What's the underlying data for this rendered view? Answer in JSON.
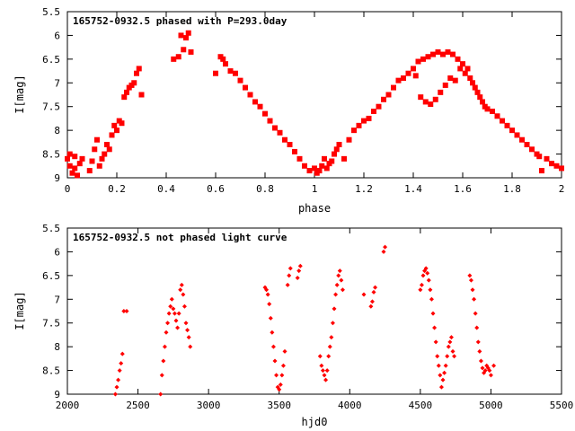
{
  "chart_data": [
    {
      "type": "scatter",
      "title": "165752-0932.5 phased with P=293.0day",
      "xlabel": "phase",
      "ylabel": "I[mag]",
      "xlim": [
        0,
        2
      ],
      "ylim": [
        9,
        5.5
      ],
      "y_inverted": true,
      "xticks": [
        "0",
        "0.2",
        "0.4",
        "0.6",
        "0.8",
        "1",
        "1.2",
        "1.4",
        "1.6",
        "1.8",
        "2"
      ],
      "yticks": [
        "5.5",
        "6",
        "6.5",
        "7",
        "7.5",
        "8",
        "8.5",
        "9"
      ],
      "marker": "filled-square",
      "series": [
        {
          "color": "#ff0000",
          "x": [
            0.0,
            0.01,
            0.01,
            0.02,
            0.03,
            0.03,
            0.04,
            0.05,
            0.06,
            0.09,
            0.1,
            0.11,
            0.12,
            0.13,
            0.14,
            0.15,
            0.16,
            0.17,
            0.18,
            0.19,
            0.2,
            0.21,
            0.22,
            0.23,
            0.24,
            0.25,
            0.26,
            0.27,
            0.28,
            0.29,
            0.3,
            0.43,
            0.45,
            0.46,
            0.47,
            0.48,
            0.49,
            0.5,
            0.6,
            0.62,
            0.63,
            0.64,
            0.66,
            0.68,
            0.7,
            0.72,
            0.74,
            0.76,
            0.78,
            0.8,
            0.82,
            0.84,
            0.86,
            0.88,
            0.9,
            0.92,
            0.94,
            0.96,
            0.98,
            1.0,
            1.01,
            1.02,
            1.03,
            1.04,
            1.05,
            1.06,
            1.07,
            1.08,
            1.09,
            1.1,
            1.12,
            1.14,
            1.16,
            1.18,
            1.2,
            1.22,
            1.24,
            1.26,
            1.28,
            1.3,
            1.32,
            1.34,
            1.36,
            1.38,
            1.4,
            1.41,
            1.42,
            1.43,
            1.44,
            1.45,
            1.46,
            1.47,
            1.48,
            1.49,
            1.5,
            1.51,
            1.52,
            1.53,
            1.54,
            1.55,
            1.56,
            1.57,
            1.58,
            1.59,
            1.6,
            1.61,
            1.62,
            1.63,
            1.64,
            1.65,
            1.66,
            1.67,
            1.68,
            1.69,
            1.7,
            1.72,
            1.74,
            1.76,
            1.78,
            1.8,
            1.82,
            1.84,
            1.86,
            1.88,
            1.9,
            1.91,
            1.92,
            1.94,
            1.96,
            1.98,
            2.0
          ],
          "y": [
            8.6,
            8.75,
            8.5,
            8.9,
            8.8,
            8.55,
            8.95,
            8.7,
            8.6,
            8.85,
            8.65,
            8.4,
            8.2,
            8.75,
            8.6,
            8.5,
            8.3,
            8.4,
            8.1,
            7.9,
            8.0,
            7.8,
            7.85,
            7.3,
            7.2,
            7.1,
            7.05,
            7.0,
            6.8,
            6.7,
            7.25,
            6.5,
            6.45,
            6.0,
            6.3,
            6.05,
            5.95,
            6.35,
            6.8,
            6.45,
            6.5,
            6.6,
            6.75,
            6.8,
            6.95,
            7.1,
            7.25,
            7.4,
            7.5,
            7.65,
            7.8,
            7.95,
            8.05,
            8.2,
            8.3,
            8.45,
            8.6,
            8.75,
            8.85,
            8.8,
            8.9,
            8.85,
            8.75,
            8.6,
            8.8,
            8.7,
            8.65,
            8.5,
            8.4,
            8.3,
            8.6,
            8.2,
            8.0,
            7.9,
            7.8,
            7.75,
            7.6,
            7.5,
            7.35,
            7.25,
            7.1,
            6.95,
            6.9,
            6.8,
            6.7,
            6.85,
            6.55,
            7.3,
            6.5,
            7.4,
            6.45,
            7.45,
            6.4,
            7.35,
            6.35,
            7.2,
            6.4,
            7.05,
            6.35,
            6.9,
            6.4,
            6.95,
            6.5,
            6.7,
            6.6,
            6.8,
            6.7,
            6.9,
            7.0,
            7.1,
            7.2,
            7.3,
            7.4,
            7.5,
            7.55,
            7.6,
            7.7,
            7.8,
            7.9,
            8.0,
            8.1,
            8.2,
            8.3,
            8.4,
            8.5,
            8.55,
            8.85,
            8.6,
            8.7,
            8.75,
            8.8
          ]
        }
      ]
    },
    {
      "type": "scatter",
      "title": "165752-0932.5 not phased light curve",
      "xlabel": "hjd0",
      "ylabel": "I[mag]",
      "xlim": [
        2000,
        5500
      ],
      "ylim": [
        9,
        5.5
      ],
      "y_inverted": true,
      "xticks": [
        "2000",
        "2500",
        "3000",
        "3500",
        "4000",
        "4500",
        "5000",
        "5500"
      ],
      "yticks": [
        "5.5",
        "6",
        "6.5",
        "7",
        "7.5",
        "8",
        "8.5",
        "9"
      ],
      "marker": "filled-diamond",
      "series": [
        {
          "color": "#ff0000",
          "x": [
            2340,
            2350,
            2360,
            2370,
            2380,
            2390,
            2400,
            2420,
            2660,
            2670,
            2680,
            2690,
            2700,
            2710,
            2720,
            2730,
            2740,
            2750,
            2760,
            2770,
            2780,
            2790,
            2800,
            2810,
            2820,
            2830,
            2840,
            2850,
            2860,
            2870,
            3400,
            3410,
            3420,
            3430,
            3440,
            3450,
            3460,
            3470,
            3480,
            3490,
            3500,
            3510,
            3520,
            3530,
            3540,
            3560,
            3570,
            3580,
            3630,
            3640,
            3650,
            3790,
            3800,
            3810,
            3820,
            3830,
            3840,
            3850,
            3860,
            3870,
            3880,
            3890,
            3900,
            3910,
            3920,
            3930,
            3940,
            3950,
            4100,
            4150,
            4160,
            4170,
            4180,
            4240,
            4250,
            4500,
            4510,
            4520,
            4530,
            4540,
            4550,
            4560,
            4570,
            4580,
            4590,
            4600,
            4610,
            4620,
            4630,
            4640,
            4650,
            4660,
            4670,
            4680,
            4690,
            4700,
            4710,
            4720,
            4730,
            4740,
            4850,
            4860,
            4870,
            4880,
            4890,
            4900,
            4910,
            4920,
            4930,
            4940,
            4950,
            4960,
            4970,
            4980,
            4990,
            5000,
            5020
          ],
          "y": [
            9.0,
            8.85,
            8.7,
            8.5,
            8.35,
            8.15,
            7.25,
            7.25,
            9.0,
            8.6,
            8.3,
            8.0,
            7.7,
            7.5,
            7.3,
            7.15,
            7.0,
            7.2,
            7.3,
            7.45,
            7.6,
            7.3,
            6.8,
            6.7,
            6.9,
            7.15,
            7.5,
            7.65,
            7.8,
            8.0,
            6.75,
            6.8,
            6.9,
            7.1,
            7.4,
            7.7,
            8.0,
            8.3,
            8.6,
            8.85,
            8.9,
            8.8,
            8.6,
            8.4,
            8.1,
            6.7,
            6.5,
            6.35,
            6.55,
            6.4,
            6.3,
            8.2,
            8.4,
            8.5,
            8.6,
            8.7,
            8.5,
            8.2,
            8.0,
            7.8,
            7.5,
            7.2,
            6.9,
            6.7,
            6.5,
            6.4,
            6.6,
            6.8,
            6.9,
            7.15,
            7.05,
            6.85,
            6.75,
            6.0,
            5.9,
            6.8,
            6.7,
            6.5,
            6.4,
            6.35,
            6.45,
            6.6,
            6.8,
            7.0,
            7.3,
            7.6,
            7.9,
            8.2,
            8.4,
            8.6,
            8.85,
            8.7,
            8.55,
            8.4,
            8.2,
            8.0,
            7.9,
            7.8,
            8.1,
            8.2,
            6.5,
            6.6,
            6.8,
            7.0,
            7.3,
            7.6,
            7.9,
            8.1,
            8.3,
            8.45,
            8.55,
            8.5,
            8.4,
            8.45,
            8.5,
            8.6,
            8.4
          ]
        }
      ]
    }
  ]
}
